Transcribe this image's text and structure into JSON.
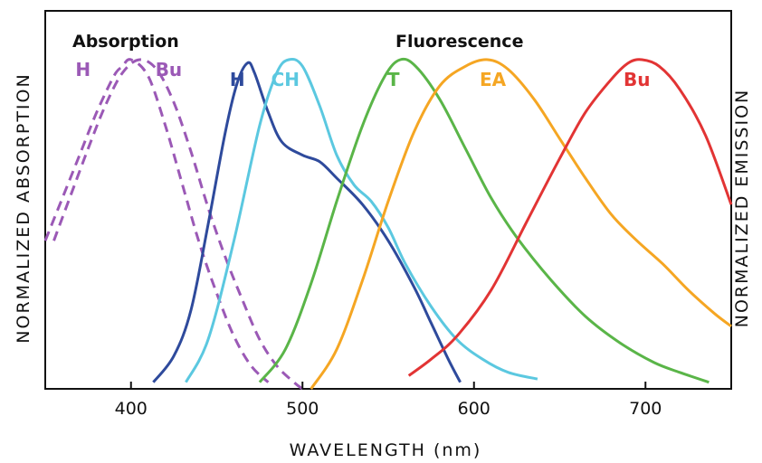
{
  "chart_data": {
    "type": "line",
    "xlabel": "WAVELENGTH (nm)",
    "ylabel_left": "NORMALIZED ABSORPTION",
    "ylabel_right": "NORMALIZED EMISSION",
    "group_labels": {
      "absorption": "Absorption",
      "fluorescence": "Fluorescence"
    },
    "xlim": [
      350,
      750
    ],
    "ylim": [
      0,
      1
    ],
    "x_ticks": [
      400,
      500,
      600,
      700
    ],
    "x_tick_labels": [
      "400",
      "500",
      "600",
      "700"
    ],
    "grid": false,
    "legend": "inline labels",
    "series": [
      {
        "name": "H",
        "group": "absorption",
        "style": "dashed",
        "color": "#9b59b6",
        "points": [
          [
            350,
            0.45
          ],
          [
            360,
            0.58
          ],
          [
            370,
            0.71
          ],
          [
            380,
            0.84
          ],
          [
            390,
            0.95
          ],
          [
            395,
            0.98
          ],
          [
            400,
            1.0
          ],
          [
            410,
            0.95
          ],
          [
            420,
            0.8
          ],
          [
            430,
            0.62
          ],
          [
            440,
            0.44
          ],
          [
            450,
            0.29
          ],
          [
            460,
            0.16
          ],
          [
            470,
            0.07
          ],
          [
            480,
            0.02
          ]
        ]
      },
      {
        "name": "Bu",
        "group": "absorption",
        "style": "dashed",
        "color": "#9b59b6",
        "points": [
          [
            355,
            0.45
          ],
          [
            365,
            0.59
          ],
          [
            375,
            0.73
          ],
          [
            385,
            0.86
          ],
          [
            395,
            0.96
          ],
          [
            405,
            1.0
          ],
          [
            415,
            0.97
          ],
          [
            425,
            0.87
          ],
          [
            435,
            0.72
          ],
          [
            445,
            0.55
          ],
          [
            455,
            0.4
          ],
          [
            465,
            0.27
          ],
          [
            475,
            0.15
          ],
          [
            485,
            0.07
          ],
          [
            495,
            0.02
          ],
          [
            500,
            0.0
          ]
        ]
      },
      {
        "name": "H",
        "group": "fluorescence",
        "style": "solid",
        "color": "#2e4a9c",
        "points": [
          [
            413,
            0.02
          ],
          [
            425,
            0.1
          ],
          [
            435,
            0.24
          ],
          [
            445,
            0.5
          ],
          [
            455,
            0.78
          ],
          [
            462,
            0.93
          ],
          [
            468,
            0.99
          ],
          [
            472,
            0.96
          ],
          [
            480,
            0.84
          ],
          [
            488,
            0.75
          ],
          [
            500,
            0.71
          ],
          [
            510,
            0.69
          ],
          [
            520,
            0.64
          ],
          [
            535,
            0.56
          ],
          [
            550,
            0.45
          ],
          [
            565,
            0.31
          ],
          [
            575,
            0.2
          ],
          [
            585,
            0.09
          ],
          [
            592,
            0.02
          ]
        ]
      },
      {
        "name": "CH",
        "group": "fluorescence",
        "style": "solid",
        "color": "#5bc8e0",
        "points": [
          [
            432,
            0.02
          ],
          [
            445,
            0.15
          ],
          [
            460,
            0.45
          ],
          [
            475,
            0.8
          ],
          [
            485,
            0.96
          ],
          [
            492,
            1.0
          ],
          [
            500,
            0.98
          ],
          [
            510,
            0.86
          ],
          [
            520,
            0.71
          ],
          [
            530,
            0.62
          ],
          [
            540,
            0.57
          ],
          [
            550,
            0.49
          ],
          [
            560,
            0.38
          ],
          [
            575,
            0.25
          ],
          [
            590,
            0.15
          ],
          [
            605,
            0.09
          ],
          [
            620,
            0.05
          ],
          [
            637,
            0.03
          ]
        ]
      },
      {
        "name": "T",
        "group": "fluorescence",
        "style": "solid",
        "color": "#5ab548",
        "points": [
          [
            475,
            0.02
          ],
          [
            490,
            0.12
          ],
          [
            505,
            0.32
          ],
          [
            520,
            0.57
          ],
          [
            535,
            0.8
          ],
          [
            548,
            0.95
          ],
          [
            557,
            1.0
          ],
          [
            566,
            0.98
          ],
          [
            580,
            0.88
          ],
          [
            595,
            0.73
          ],
          [
            610,
            0.58
          ],
          [
            625,
            0.46
          ],
          [
            645,
            0.33
          ],
          [
            665,
            0.22
          ],
          [
            685,
            0.14
          ],
          [
            705,
            0.08
          ],
          [
            720,
            0.05
          ],
          [
            737,
            0.02
          ]
        ]
      },
      {
        "name": "EA",
        "group": "fluorescence",
        "style": "solid",
        "color": "#f5a623",
        "points": [
          [
            505,
            0.0
          ],
          [
            520,
            0.12
          ],
          [
            535,
            0.33
          ],
          [
            550,
            0.57
          ],
          [
            565,
            0.78
          ],
          [
            580,
            0.92
          ],
          [
            595,
            0.98
          ],
          [
            608,
            1.0
          ],
          [
            620,
            0.97
          ],
          [
            635,
            0.88
          ],
          [
            650,
            0.76
          ],
          [
            665,
            0.64
          ],
          [
            680,
            0.53
          ],
          [
            695,
            0.45
          ],
          [
            710,
            0.38
          ],
          [
            725,
            0.3
          ],
          [
            740,
            0.23
          ],
          [
            750,
            0.19
          ]
        ]
      },
      {
        "name": "Bu",
        "group": "fluorescence",
        "style": "solid",
        "color": "#e23434",
        "points": [
          [
            562,
            0.04
          ],
          [
            575,
            0.09
          ],
          [
            590,
            0.16
          ],
          [
            610,
            0.3
          ],
          [
            630,
            0.5
          ],
          [
            650,
            0.7
          ],
          [
            665,
            0.84
          ],
          [
            680,
            0.94
          ],
          [
            690,
            0.99
          ],
          [
            698,
            1.0
          ],
          [
            708,
            0.98
          ],
          [
            720,
            0.91
          ],
          [
            735,
            0.77
          ],
          [
            750,
            0.56
          ]
        ]
      }
    ]
  }
}
